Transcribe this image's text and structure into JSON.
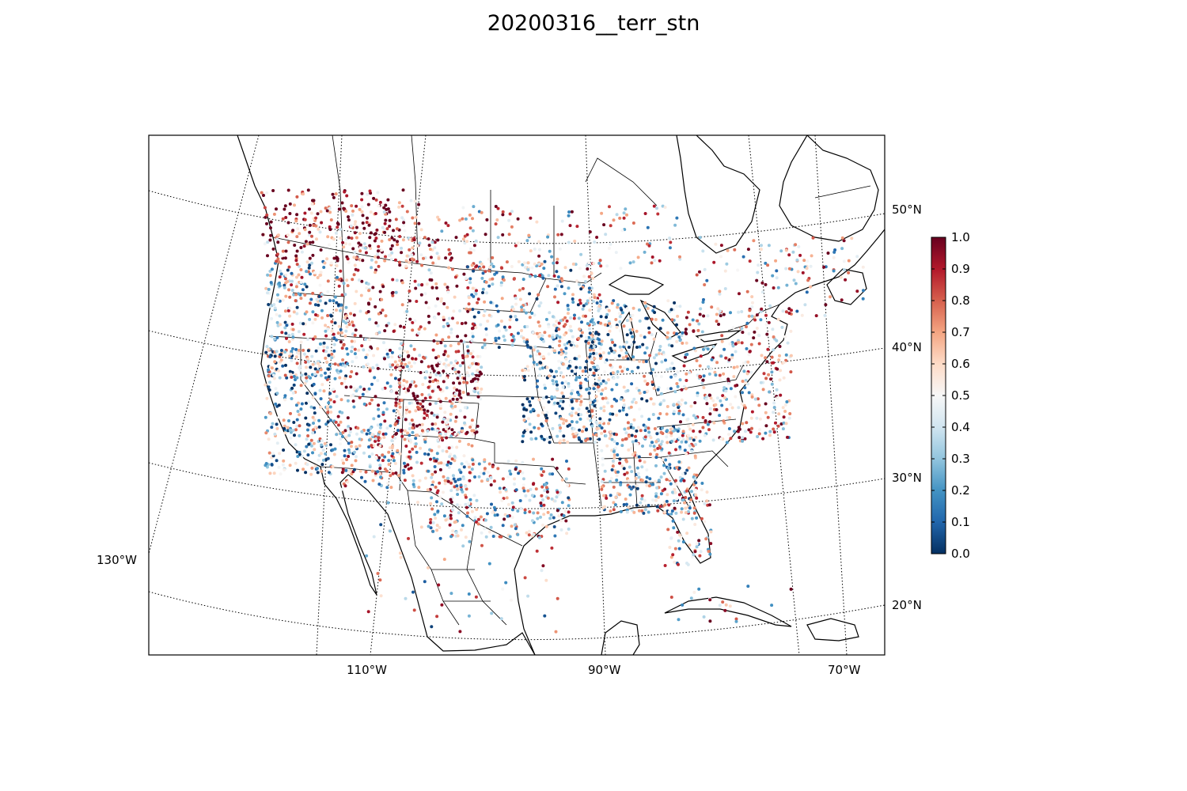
{
  "title": "20200316__terr_stn",
  "map": {
    "projection": "lambert-conformal",
    "region": "North America (contiguous US, southern Canada, northern Mexico, Caribbean)",
    "gridlines": "dotted",
    "latitude_labels": [
      "50°N",
      "40°N",
      "30°N",
      "20°N"
    ],
    "longitude_labels": [
      "130°W",
      "110°W",
      "90°W",
      "70°W"
    ],
    "coastline_color": "#000000",
    "border_color": "#000000"
  },
  "colorbar": {
    "colormap": "RdBu_r",
    "min": 0.0,
    "max": 1.0,
    "tick_labels": [
      "1.0",
      "0.9",
      "0.8",
      "0.7",
      "0.6",
      "0.5",
      "0.4",
      "0.3",
      "0.2",
      "0.1",
      "0.0"
    ],
    "low_color": "#053061",
    "mid_color": "#f7f7f7",
    "high_color": "#67001f"
  }
}
